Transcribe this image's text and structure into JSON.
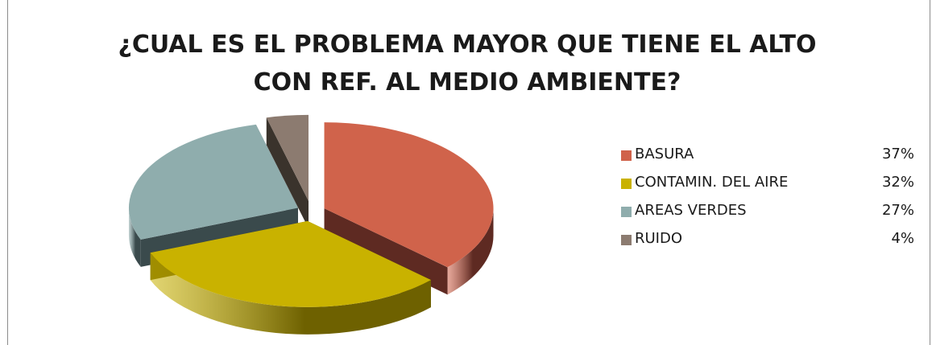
{
  "chart_data": {
    "type": "pie",
    "title": "¿CUAL ES EL PROBLEMA MAYOR QUE TIENE EL ALTO CON REF. AL MEDIO AMBIENTE?",
    "categories": [
      "BASURA",
      "CONTAMIN. DEL AIRE",
      "AREAS VERDES",
      "RUIDO"
    ],
    "values": [
      37,
      32,
      27,
      4
    ],
    "value_labels": [
      "37%",
      "32%",
      "27%",
      "4%"
    ],
    "colors": [
      "#d0634b",
      "#c9b200",
      "#8fadad",
      "#8c7b70"
    ],
    "side_colors": [
      "#5e2a22",
      "#6e6100",
      "#3a4a4c",
      "#3a332c"
    ],
    "style": "3d-exploded",
    "legend_position": "right"
  }
}
